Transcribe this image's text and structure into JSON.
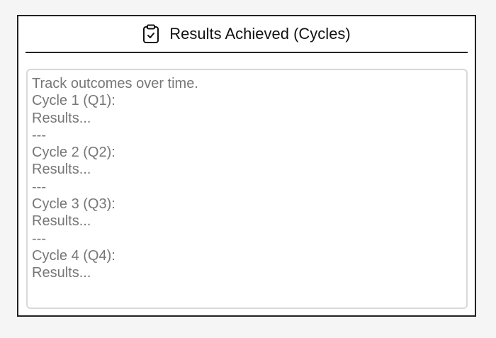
{
  "header": {
    "icon": "clipboard-check-icon",
    "title": "Results Achieved (Cycles)"
  },
  "results_field": {
    "value": "",
    "placeholder": "Track outcomes over time.\nCycle 1 (Q1):\nResults...\n---\nCycle 2 (Q2):\nResults...\n---\nCycle 3 (Q3):\nResults...\n---\nCycle 4 (Q4):\nResults..."
  }
}
